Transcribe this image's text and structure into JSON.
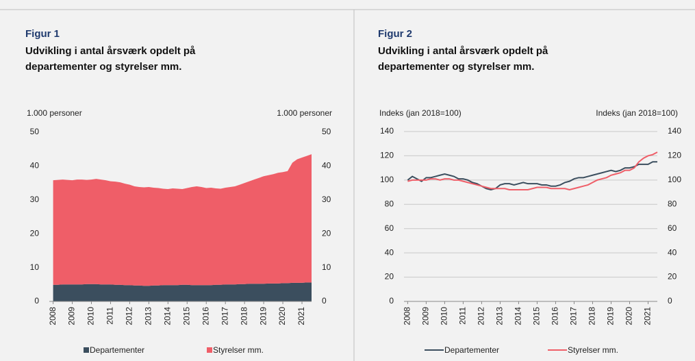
{
  "chart_data": [
    {
      "type": "area",
      "stacked": true,
      "label": "Figur 1",
      "title": [
        "Udvikling i antal årsværk opdelt på",
        "departementer og styrelser mm."
      ],
      "ylabel": "1.000 personer",
      "y2label": "1.000 personer",
      "xlim": [
        2007.8,
        2021.5
      ],
      "xticks": [
        2008,
        2009,
        2010,
        2011,
        2012,
        2013,
        2014,
        2015,
        2016,
        2017,
        2018,
        2019,
        2020,
        2021
      ],
      "ylim": [
        0,
        50
      ],
      "yticks": [
        0,
        10,
        20,
        30,
        40,
        50
      ],
      "y2lim": [
        0,
        50
      ],
      "y2ticks": [
        0,
        10,
        20,
        30,
        40,
        50
      ],
      "grid": false,
      "legend": "bottom",
      "x": [
        2008,
        2008.25,
        2008.5,
        2008.75,
        2009,
        2009.25,
        2009.5,
        2009.75,
        2010,
        2010.25,
        2010.5,
        2010.75,
        2011,
        2011.25,
        2011.5,
        2011.75,
        2012,
        2012.25,
        2012.5,
        2012.75,
        2013,
        2013.25,
        2013.5,
        2013.75,
        2014,
        2014.25,
        2014.5,
        2014.75,
        2015,
        2015.25,
        2015.5,
        2015.75,
        2016,
        2016.25,
        2016.5,
        2016.75,
        2017,
        2017.25,
        2017.5,
        2017.75,
        2018,
        2018.25,
        2018.5,
        2018.75,
        2019,
        2019.25,
        2019.5,
        2019.75,
        2020,
        2020.25,
        2020.5,
        2020.75,
        2021,
        2021.25,
        2021.5
      ],
      "series": [
        {
          "name": "Departementer",
          "color": "#3b4e5e",
          "values": [
            4.9,
            4.9,
            5.0,
            5.0,
            5.0,
            5.0,
            5.0,
            5.1,
            5.1,
            5.1,
            5.0,
            5.0,
            5.0,
            4.9,
            4.9,
            4.8,
            4.8,
            4.7,
            4.7,
            4.6,
            4.6,
            4.7,
            4.7,
            4.8,
            4.8,
            4.8,
            4.8,
            4.9,
            4.9,
            4.8,
            4.8,
            4.8,
            4.8,
            4.8,
            4.9,
            4.9,
            5.0,
            5.0,
            5.0,
            5.1,
            5.1,
            5.2,
            5.2,
            5.2,
            5.2,
            5.3,
            5.3,
            5.3,
            5.4,
            5.4,
            5.5,
            5.5,
            5.5,
            5.6,
            5.6
          ]
        },
        {
          "name": "Styrelser mm.",
          "color": "#ef5e68",
          "values": [
            30.9,
            31.0,
            31.0,
            30.9,
            30.8,
            31.0,
            31.0,
            30.8,
            30.9,
            31.1,
            31.0,
            30.8,
            30.5,
            30.5,
            30.3,
            30.0,
            29.7,
            29.3,
            29.1,
            29.1,
            29.2,
            28.9,
            28.8,
            28.5,
            28.4,
            28.6,
            28.5,
            28.3,
            28.6,
            29.0,
            29.2,
            29.0,
            28.7,
            28.8,
            28.5,
            28.4,
            28.6,
            28.8,
            29.0,
            29.4,
            29.9,
            30.3,
            30.8,
            31.3,
            31.8,
            32.0,
            32.3,
            32.7,
            32.8,
            33.1,
            35.5,
            36.5,
            37.0,
            37.4,
            37.9
          ]
        }
      ]
    },
    {
      "type": "line",
      "label": "Figur 2",
      "title": [
        "Udvikling i antal årsværk opdelt på",
        "departementer og styrelser mm."
      ],
      "ylabel": "Indeks (jan 2018=100)",
      "y2label": "Indeks (jan 2018=100)",
      "xlim": [
        2007.8,
        2021.5
      ],
      "xticks": [
        2008,
        2009,
        2010,
        2011,
        2012,
        2013,
        2014,
        2015,
        2016,
        2017,
        2018,
        2019,
        2020,
        2021
      ],
      "ylim": [
        0,
        140
      ],
      "yticks": [
        0,
        20,
        40,
        60,
        80,
        100,
        120,
        140
      ],
      "y2lim": [
        0,
        140
      ],
      "y2ticks": [
        0,
        20,
        40,
        60,
        80,
        100,
        120,
        140
      ],
      "grid": true,
      "legend": "bottom",
      "x": [
        2008,
        2008.25,
        2008.5,
        2008.75,
        2009,
        2009.25,
        2009.5,
        2009.75,
        2010,
        2010.25,
        2010.5,
        2010.75,
        2011,
        2011.25,
        2011.5,
        2011.75,
        2012,
        2012.25,
        2012.5,
        2012.75,
        2013,
        2013.25,
        2013.5,
        2013.75,
        2014,
        2014.25,
        2014.5,
        2014.75,
        2015,
        2015.25,
        2015.5,
        2015.75,
        2016,
        2016.25,
        2016.5,
        2016.75,
        2017,
        2017.25,
        2017.5,
        2017.75,
        2018,
        2018.25,
        2018.5,
        2018.75,
        2019,
        2019.25,
        2019.5,
        2019.75,
        2020,
        2020.25,
        2020.5,
        2020.75,
        2021,
        2021.25,
        2021.5
      ],
      "series": [
        {
          "name": "Departementer",
          "color": "#3b4e5e",
          "values": [
            100,
            103,
            101,
            99,
            102,
            102,
            103,
            104,
            105,
            104,
            103,
            101,
            101,
            100,
            98,
            97,
            95,
            93,
            92,
            93,
            96,
            97,
            97,
            96,
            97,
            98,
            97,
            97,
            97,
            96,
            96,
            95,
            95,
            96,
            98,
            99,
            101,
            102,
            102,
            103,
            104,
            105,
            106,
            107,
            108,
            107,
            108,
            110,
            110,
            111,
            113,
            113,
            113,
            115,
            115
          ]
        },
        {
          "name": "Styrelser mm.",
          "color": "#ef5e68",
          "values": [
            99,
            100,
            100,
            100,
            100,
            101,
            101,
            100,
            101,
            101,
            100,
            100,
            99,
            98,
            97,
            96,
            95,
            94,
            93,
            93,
            93,
            93,
            92,
            92,
            92,
            92,
            92,
            93,
            94,
            94,
            94,
            93,
            93,
            93,
            93,
            92,
            93,
            94,
            95,
            96,
            98,
            100,
            101,
            102,
            104,
            105,
            106,
            108,
            108,
            110,
            115,
            118,
            120,
            121,
            123
          ]
        }
      ]
    }
  ]
}
